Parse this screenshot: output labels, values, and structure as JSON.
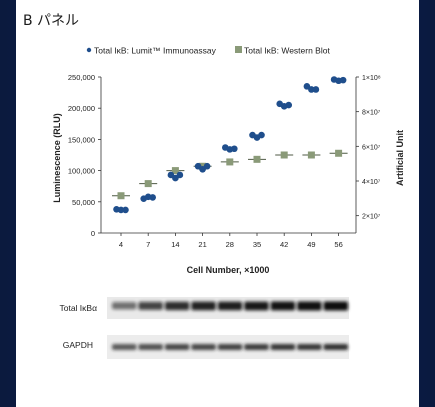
{
  "panel": {
    "title": "B パネル"
  },
  "chart_data": {
    "type": "scatter",
    "x_categories": [
      "4",
      "7",
      "14",
      "21",
      "28",
      "35",
      "42",
      "49",
      "56"
    ],
    "xlabel": "Cell Number, ×1000",
    "ylabel": "Luminescence (RLU)",
    "y2label": "Artificial Unit",
    "ylim": [
      0,
      250000
    ],
    "yticks": [
      "0",
      "50,000",
      "100,000",
      "150,000",
      "200,000",
      "250,000"
    ],
    "y2lim": [
      10000000,
      100000000
    ],
    "y2ticks": [
      "2×10⁷",
      "4×10⁷",
      "6×10⁷",
      "8×10⁷",
      "1×10⁸"
    ],
    "legend_position": "top",
    "series": [
      {
        "name": "Total IκB: Lumit™ Immunoassay",
        "axis": "left",
        "marker": "circle",
        "color": "#1f4e8c",
        "values": [
          [
            38000,
            37000,
            37000
          ],
          [
            55000,
            58000,
            57000
          ],
          [
            93000,
            88000,
            93000
          ],
          [
            107000,
            102000,
            107000
          ],
          [
            137000,
            134000,
            135000
          ],
          [
            157000,
            153000,
            157000
          ],
          [
            207000,
            203000,
            205000
          ],
          [
            235000,
            230000,
            230000
          ],
          [
            246000,
            244000,
            245000
          ]
        ]
      },
      {
        "name": "Total IκB: Western Blot",
        "axis": "right",
        "marker": "square",
        "color": "#8a9a78",
        "values": [
          31500000,
          38500000,
          46000000,
          48500000,
          51000000,
          52500000,
          55000000,
          55000000,
          56000000
        ]
      }
    ]
  },
  "blot": {
    "rows": [
      {
        "label": "Total IκBα",
        "lanes": 9
      },
      {
        "label": "GAPDH",
        "lanes": 9
      }
    ]
  }
}
